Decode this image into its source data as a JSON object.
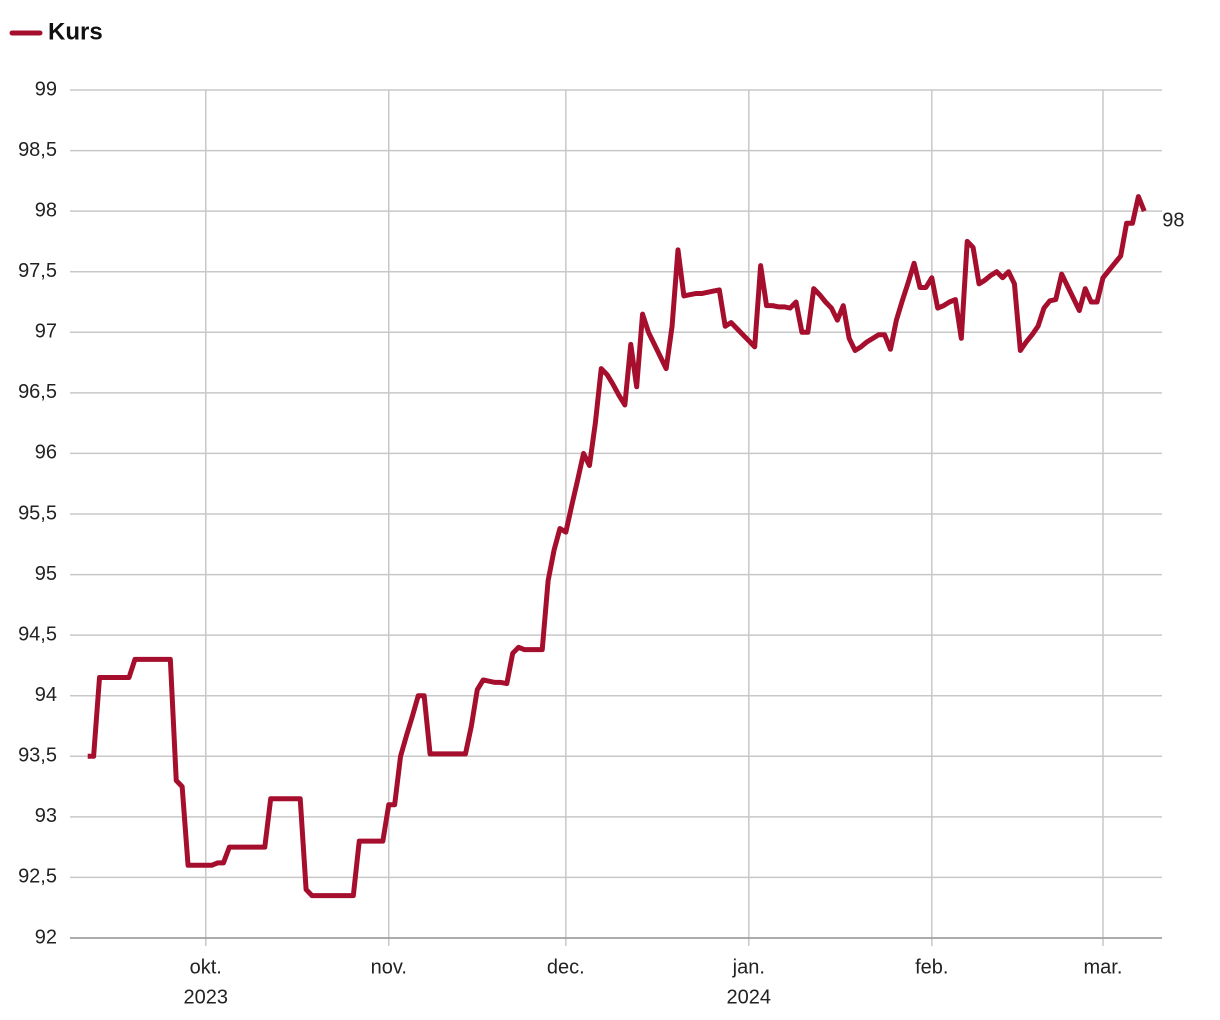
{
  "chart_data": {
    "type": "line",
    "series": [
      {
        "name": "Kurs",
        "color": "#a50f2d",
        "values": [
          93.5,
          93.5,
          94.15,
          94.15,
          94.15,
          94.15,
          94.15,
          94.15,
          94.3,
          94.3,
          94.3,
          94.3,
          94.3,
          94.3,
          94.3,
          93.3,
          93.25,
          92.6,
          92.6,
          92.6,
          92.6,
          92.6,
          92.62,
          92.62,
          92.75,
          92.75,
          92.75,
          92.75,
          92.75,
          92.75,
          92.75,
          93.15,
          93.15,
          93.15,
          93.15,
          93.15,
          93.15,
          92.4,
          92.35,
          92.35,
          92.35,
          92.35,
          92.35,
          92.35,
          92.35,
          92.35,
          92.8,
          92.8,
          92.8,
          92.8,
          92.8,
          93.1,
          93.1,
          93.5,
          93.67,
          93.83,
          94.0,
          94.0,
          93.52,
          93.52,
          93.52,
          93.52,
          93.52,
          93.52,
          93.52,
          93.75,
          94.05,
          94.13,
          94.12,
          94.11,
          94.11,
          94.1,
          94.35,
          94.4,
          94.38,
          94.38,
          94.38,
          94.38,
          94.95,
          95.2,
          95.38,
          95.35,
          95.57,
          95.78,
          96.0,
          95.9,
          96.25,
          96.7,
          96.65,
          96.57,
          96.48,
          96.4,
          96.9,
          96.55,
          97.15,
          97.0,
          96.9,
          96.8,
          96.7,
          97.05,
          97.68,
          97.3,
          97.31,
          97.32,
          97.32,
          97.33,
          97.34,
          97.35,
          97.05,
          97.08,
          97.03,
          96.98,
          96.93,
          96.88,
          97.55,
          97.22,
          97.22,
          97.21,
          97.21,
          97.2,
          97.25,
          97.0,
          97.0,
          97.36,
          97.31,
          97.25,
          97.2,
          97.1,
          97.22,
          96.95,
          96.85,
          96.88,
          96.92,
          96.95,
          96.98,
          96.98,
          96.86,
          97.1,
          97.26,
          97.41,
          97.57,
          97.37,
          97.37,
          97.45,
          97.2,
          97.22,
          97.25,
          97.27,
          96.95,
          97.75,
          97.7,
          97.4,
          97.43,
          97.47,
          97.5,
          97.45,
          97.5,
          97.4,
          96.85,
          96.92,
          96.98,
          97.05,
          97.2,
          97.26,
          97.27,
          97.48,
          97.38,
          97.28,
          97.18,
          97.36,
          97.25,
          97.25,
          97.45,
          97.51,
          97.57,
          97.63,
          97.9,
          97.9,
          98.12,
          98.0
        ],
        "last_value_label": "98"
      }
    ],
    "xlim": [
      -3,
      182
    ],
    "xticks": [
      {
        "value": 20,
        "label": "okt.",
        "sublabel": "2023"
      },
      {
        "value": 51,
        "label": "nov."
      },
      {
        "value": 81,
        "label": "dec."
      },
      {
        "value": 112,
        "label": "jan.",
        "sublabel": "2024"
      },
      {
        "value": 143,
        "label": "feb."
      },
      {
        "value": 172,
        "label": "mar."
      }
    ],
    "ylim": [
      92,
      99
    ],
    "yticks": [
      92,
      {
        "value": 92.5,
        "label": "92,5"
      },
      93,
      {
        "value": 93.5,
        "label": "93,5"
      },
      94,
      {
        "value": 94.5,
        "label": "94,5"
      },
      95,
      {
        "value": 95.5,
        "label": "95,5"
      },
      96,
      {
        "value": 96.5,
        "label": "96,5"
      },
      97,
      {
        "value": 97.5,
        "label": "97,5"
      },
      98,
      {
        "value": 98.5,
        "label": "98,5"
      },
      99
    ],
    "grid": true
  }
}
